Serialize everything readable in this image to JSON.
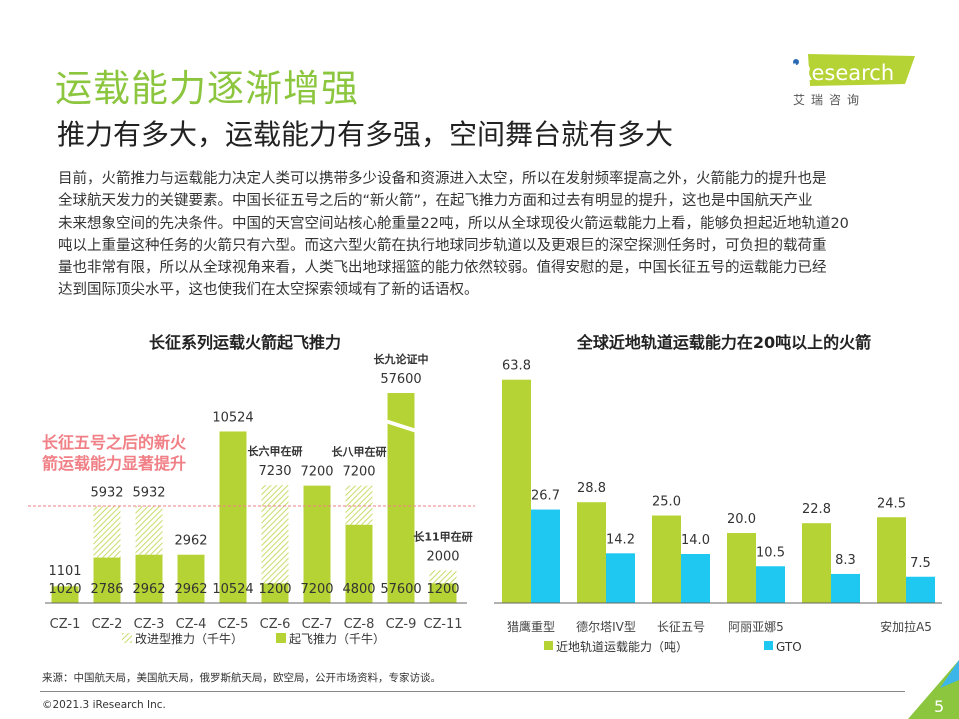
{
  "header": {
    "title": "运载能力逐渐增强",
    "subtitle": "推力有多大，运载能力有多强，空间舞台就有多大",
    "logo_text": "iResearch",
    "logo_subtext": "艾 瑞 咨 询"
  },
  "paragraph_lines": [
    "目前，火箭推力与运载能力决定人类可以携带多少设备和资源进入太空，所以在发射频率提高之外，火箭能力的提升也是",
    "全球航天发力的关键要素。中国长征五号之后的“新火箭”，在起飞推力方面和过去有明显的提升，这也是中国航天产业",
    "未来想象空间的先决条件。中国的天宫空间站核心舱重量22吨，所以从全球现役火箭运载能力上看，能够负担起近地轨道20",
    "吨以上重量这种任务的火箭只有六型。而这六型火箭在执行地球同步轨道以及更艰巨的深空探测任务时，可负担的载荷重",
    "量也非常有限，所以从全球视角来看，人类飞出地球摇篮的能力依然较弱。值得安慰的是，中国长征五号的运载能力已经",
    "达到国际顶尖水平，这也使我们在太空探索领域有了新的话语权。"
  ],
  "chart_data": [
    {
      "type": "bar",
      "title": "长征系列运载火箭起飞推力",
      "categories": [
        "CZ-1",
        "CZ-2",
        "CZ-3",
        "CZ-4",
        "CZ-5",
        "CZ-6",
        "CZ-7",
        "CZ-8",
        "CZ-9",
        "CZ-11"
      ],
      "series": [
        {
          "name": "起飞推力（千牛）",
          "values": [
            1020,
            2786,
            2962,
            2962,
            10524,
            1200,
            7200,
            4800,
            57600,
            1200
          ],
          "color": "#b5d334"
        },
        {
          "name": "改进型推力（千牛）",
          "values": [
            1101,
            5932,
            5932,
            2962,
            10524,
            7230,
            7200,
            7200,
            57600,
            2000
          ],
          "pattern": "hatched",
          "color": "#d6e68a"
        }
      ],
      "annotations": [
        {
          "category": "CZ-6",
          "text": "长六甲在研"
        },
        {
          "category": "CZ-8",
          "text": "长八甲在研"
        },
        {
          "category": "CZ-9",
          "text": "长九论证中"
        },
        {
          "category": "CZ-11",
          "text": "长11甲在研"
        }
      ],
      "callout": {
        "lines": [
          "长征五号之后的新火",
          "箭运载能力显著提升"
        ],
        "color": "#f07f86"
      },
      "axis_break": "CZ-9",
      "legend": "bottom"
    },
    {
      "type": "bar",
      "title": "全球近地轨道运载能力在20吨以上的火箭",
      "categories": [
        "猎鹰重型",
        "德尔塔IV型",
        "长征五号",
        "阿丽亚娜5",
        "",
        "安加拉A5"
      ],
      "series": [
        {
          "name": "近地轨道运载能力（吨）",
          "values": [
            63.8,
            28.8,
            25.0,
            20.0,
            22.8,
            24.5
          ],
          "color": "#b5d334"
        },
        {
          "name": "GTO",
          "values": [
            26.7,
            14.2,
            14.0,
            10.5,
            8.3,
            7.5
          ],
          "color": "#1ec8f0"
        }
      ],
      "legend": "bottom"
    }
  ],
  "footer": {
    "source": "来源：中国航天局，美国航天局，俄罗斯航天局，欧空局，公开市场资料，专家访谈。",
    "copyright": "©2021.3 iResearch Inc.",
    "page_number": "5"
  }
}
